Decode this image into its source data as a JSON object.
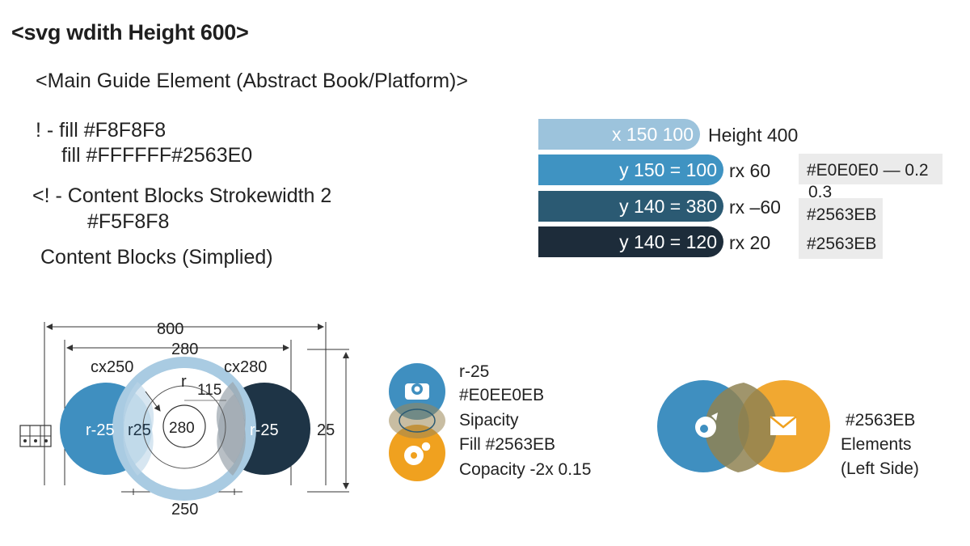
{
  "heading": "<svg wdith Height 600>",
  "guide_title": "<Main Guide Element (Abstract Book/Platform)>",
  "comments": {
    "line1": "! - fill #F8F8F8",
    "line2": "fill #FFFFFF#2563E0",
    "line3": "<! - Content Blocks Strokewidth 2",
    "line4": "#F5F8F8",
    "line5": "Content Blocks (Simplied)"
  },
  "bars": [
    {
      "label": "x 150 100",
      "color": "#9cc3dc",
      "note": "Height 400"
    },
    {
      "label": "y 150 = 100",
      "color": "#3f93c2",
      "note": "rx  60"
    },
    {
      "label": "y 140 = 380",
      "color": "#2b5a73",
      "note": "rx –60"
    },
    {
      "label": "y 140 = 120",
      "color": "#1d2c3a",
      "note": "rx  20"
    }
  ],
  "swatches": {
    "s1": "#E0E0E0 — 0.2",
    "s1b": "0.3",
    "s2": "#2563EB",
    "s3": "#2563EB"
  },
  "venn": {
    "dim_total": "800",
    "dim_inner": "280",
    "cx_left": "cx250",
    "cx_right": "cx280",
    "r_label": "r",
    "r_value": "115",
    "left_label": "r-25",
    "mid_label": "r25",
    "center_label": "280",
    "right_label": "r-25",
    "side_label": "25",
    "bottom_label": "250"
  },
  "stack": {
    "l1": "r-25",
    "l2": "#E0EE0EB",
    "l3": "Sipacity",
    "l4": "Fill #2563EB",
    "l5": "Copacity -2x 0.15"
  },
  "pair": {
    "l1": "#2563EB",
    "l2": "Elements",
    "l3": "(Left Side)"
  },
  "colors": {
    "blue": "#3f8fc0",
    "dark": "#1e3446",
    "orange": "#f0a11f",
    "light_ring": "#a9cbe2"
  },
  "icons": [
    "grid-icon",
    "camera-icon",
    "disc-icon",
    "tag-icon",
    "mail-icon"
  ]
}
